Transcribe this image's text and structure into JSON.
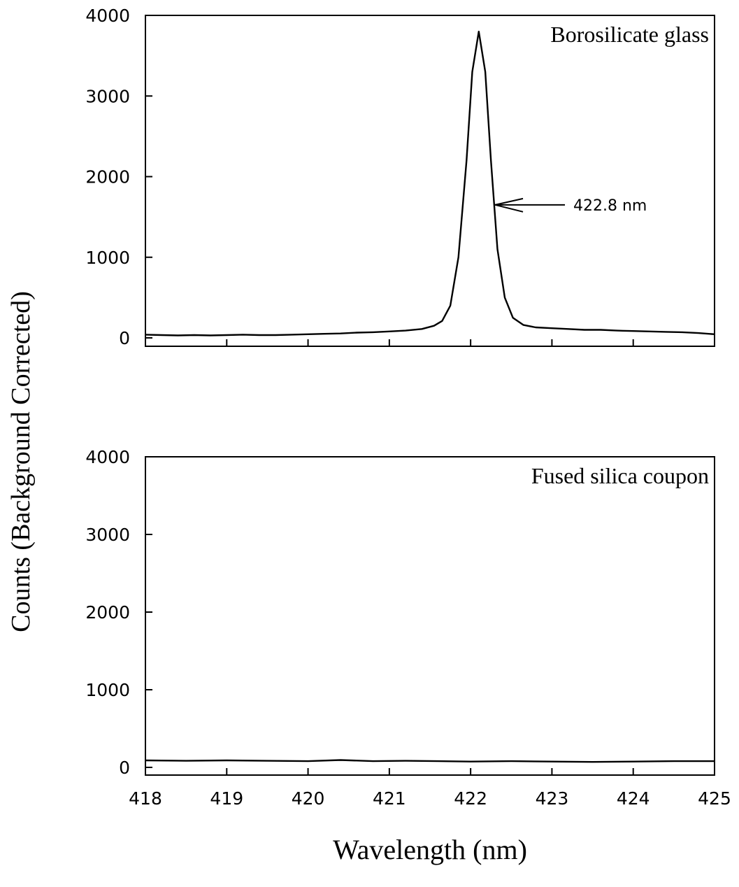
{
  "chart_data": [
    {
      "type": "line",
      "panel": "top",
      "legend_text": "Borosilicate glass",
      "legend_position": "top-right",
      "xlim": [
        418,
        425
      ],
      "ylim": [
        0,
        4000
      ],
      "y_ticks": [
        0,
        1000,
        2000,
        3000,
        4000
      ],
      "x_ticks": [
        418,
        419,
        420,
        421,
        422,
        423,
        424,
        425
      ],
      "show_x_tick_labels": false,
      "annotation": {
        "text": "422.8 nm",
        "x": 422.3,
        "y": 1650
      },
      "series": [
        {
          "values": [
            [
              418.0,
              40
            ],
            [
              418.2,
              35
            ],
            [
              418.4,
              30
            ],
            [
              418.6,
              35
            ],
            [
              418.8,
              30
            ],
            [
              419.0,
              35
            ],
            [
              419.2,
              40
            ],
            [
              419.4,
              35
            ],
            [
              419.6,
              35
            ],
            [
              419.8,
              40
            ],
            [
              420.0,
              45
            ],
            [
              420.2,
              50
            ],
            [
              420.4,
              55
            ],
            [
              420.6,
              65
            ],
            [
              420.8,
              70
            ],
            [
              421.0,
              80
            ],
            [
              421.2,
              90
            ],
            [
              421.4,
              110
            ],
            [
              421.55,
              150
            ],
            [
              421.65,
              210
            ],
            [
              421.75,
              400
            ],
            [
              421.85,
              1000
            ],
            [
              421.95,
              2200
            ],
            [
              422.02,
              3300
            ],
            [
              422.1,
              3800
            ],
            [
              422.18,
              3300
            ],
            [
              422.25,
              2200
            ],
            [
              422.33,
              1100
            ],
            [
              422.42,
              500
            ],
            [
              422.52,
              250
            ],
            [
              422.65,
              160
            ],
            [
              422.8,
              130
            ],
            [
              423.0,
              120
            ],
            [
              423.2,
              110
            ],
            [
              423.4,
              100
            ],
            [
              423.6,
              100
            ],
            [
              423.8,
              90
            ],
            [
              424.0,
              85
            ],
            [
              424.2,
              80
            ],
            [
              424.4,
              75
            ],
            [
              424.6,
              70
            ],
            [
              424.8,
              60
            ],
            [
              425.0,
              45
            ]
          ]
        }
      ]
    },
    {
      "type": "line",
      "panel": "bottom",
      "legend_text": "Fused silica coupon",
      "legend_position": "top-right",
      "xlim": [
        418,
        425
      ],
      "ylim": [
        0,
        4000
      ],
      "y_ticks": [
        0,
        1000,
        2000,
        3000,
        4000
      ],
      "x_ticks": [
        418,
        419,
        420,
        421,
        422,
        423,
        424,
        425
      ],
      "show_x_tick_labels": true,
      "series": [
        {
          "values": [
            [
              418.0,
              90
            ],
            [
              418.5,
              85
            ],
            [
              419.0,
              90
            ],
            [
              419.5,
              85
            ],
            [
              420.0,
              80
            ],
            [
              420.4,
              95
            ],
            [
              420.8,
              80
            ],
            [
              421.2,
              85
            ],
            [
              421.6,
              80
            ],
            [
              422.0,
              75
            ],
            [
              422.5,
              80
            ],
            [
              423.0,
              75
            ],
            [
              423.5,
              70
            ],
            [
              424.0,
              75
            ],
            [
              424.5,
              80
            ],
            [
              425.0,
              80
            ]
          ]
        }
      ]
    }
  ],
  "xlabel": "Wavelength (nm)",
  "ylabel": "Counts (Background Corrected)"
}
